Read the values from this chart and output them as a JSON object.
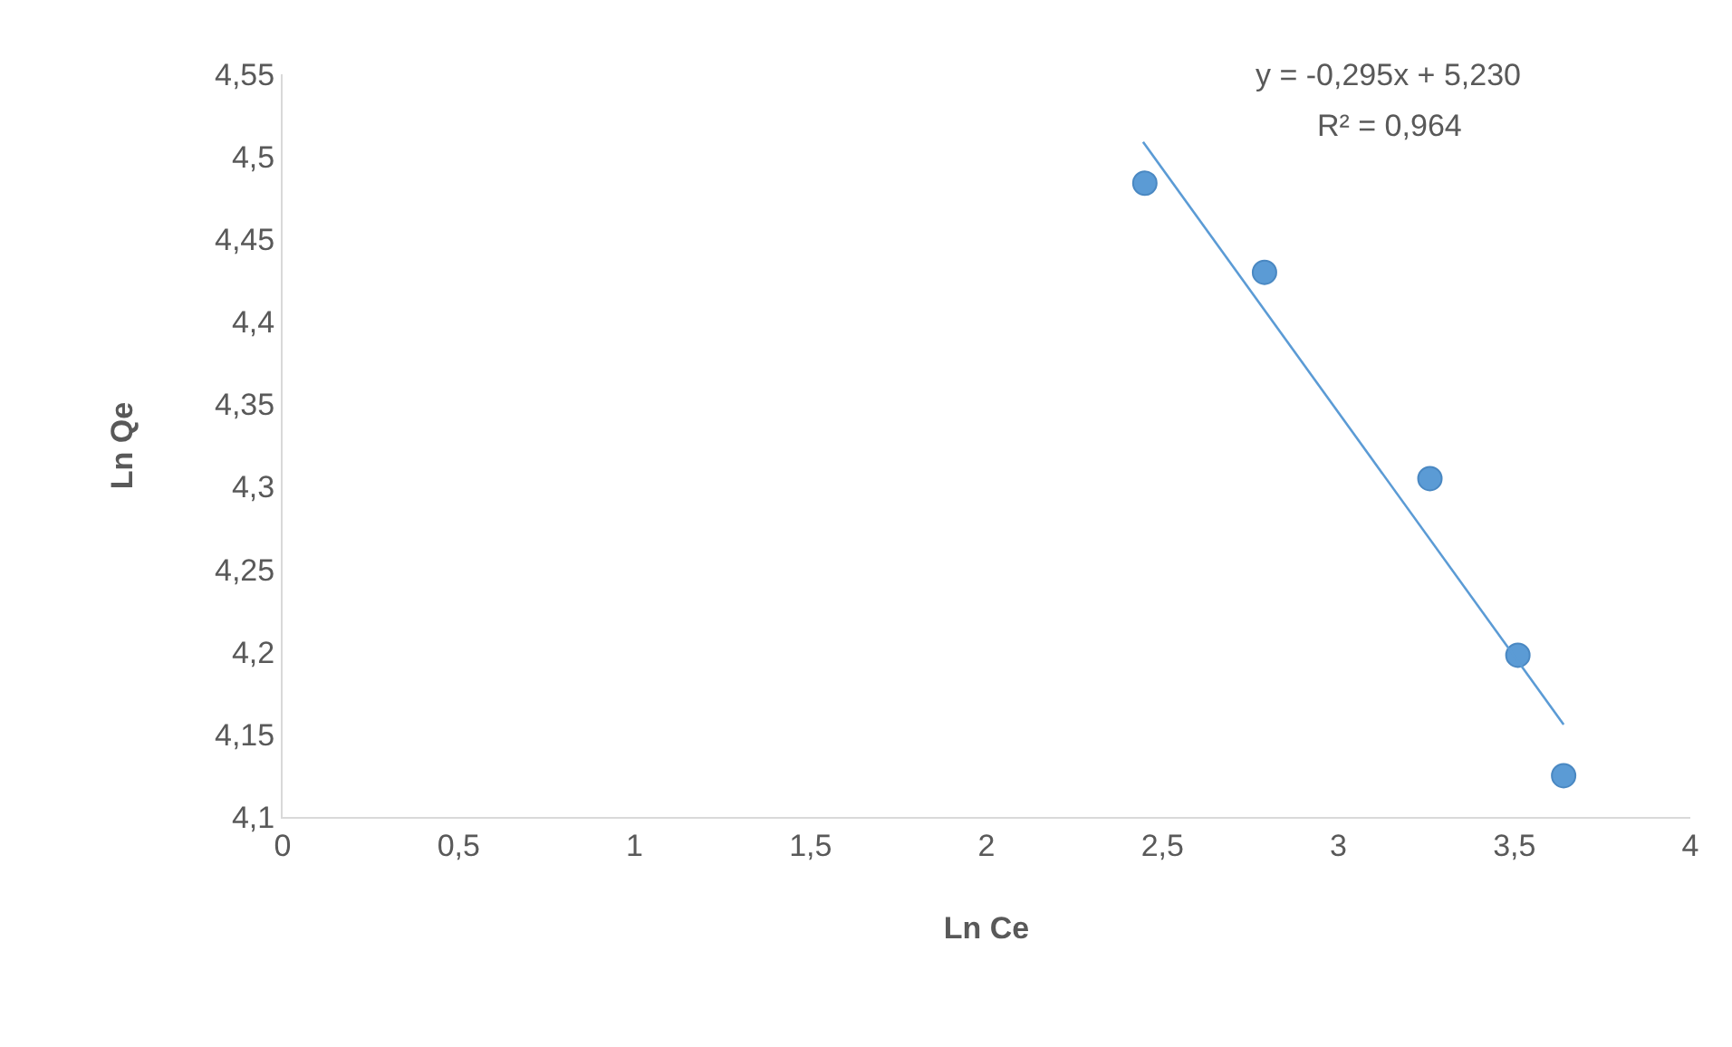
{
  "chart_data": {
    "type": "scatter",
    "xlabel": "Ln Ce",
    "ylabel": "Ln Qe",
    "annotations": [
      "y = -0,295x + 5,230",
      "R² = 0,964"
    ],
    "series": [
      {
        "color": "#5b9bd5",
        "x": [
          2.45,
          2.79,
          3.26,
          3.51,
          3.64
        ],
        "values": [
          4.484,
          4.43,
          4.305,
          4.198,
          4.125
        ],
        "marker": "circle"
      },
      {
        "type": "line",
        "color": "#5b9bd5",
        "x": [
          2.445,
          3.64
        ],
        "values": [
          4.509,
          4.156
        ],
        "marker": "none",
        "line_style": "solid"
      }
    ],
    "xlim": [
      0,
      4
    ],
    "xticks": [
      0,
      {
        "value": 0.5,
        "label": "0,5"
      },
      1,
      {
        "value": 1.5,
        "label": "1,5"
      },
      2,
      {
        "value": 2.5,
        "label": "2,5"
      },
      3,
      {
        "value": 3.5,
        "label": "3,5"
      },
      4
    ],
    "ylim": [
      4.1,
      4.55
    ],
    "yticks": [
      {
        "value": 4.1,
        "label": "4,1"
      },
      {
        "value": 4.15,
        "label": "4,15"
      },
      {
        "value": 4.2,
        "label": "4,2"
      },
      {
        "value": 4.25,
        "label": "4,25"
      },
      {
        "value": 4.3,
        "label": "4,3"
      },
      {
        "value": 4.35,
        "label": "4,35"
      },
      {
        "value": 4.4,
        "label": "4,4"
      },
      {
        "value": 4.45,
        "label": "4,45"
      },
      {
        "value": 4.5,
        "label": "4,5"
      },
      {
        "value": 4.55,
        "label": "4,55"
      }
    ]
  }
}
